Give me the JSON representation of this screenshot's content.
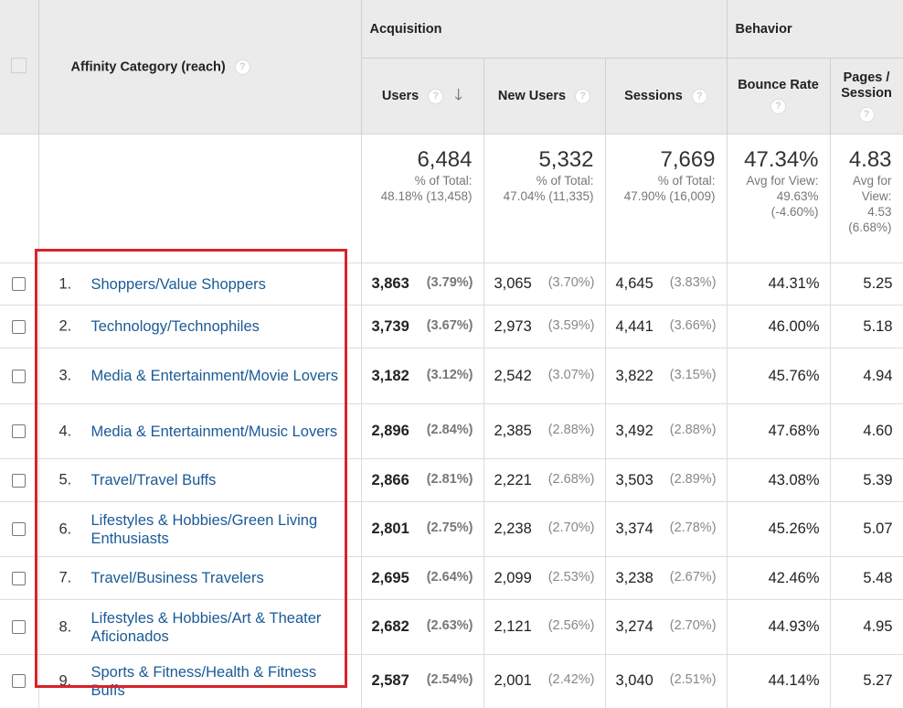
{
  "header": {
    "dimension_label": "Affinity Category (reach)",
    "groups": {
      "acquisition": "Acquisition",
      "behavior": "Behavior"
    },
    "columns": {
      "users": "Users",
      "new_users": "New Users",
      "sessions": "Sessions",
      "bounce_rate": "Bounce Rate",
      "pages_session_line1": "Pages /",
      "pages_session_line2": "Session"
    },
    "help_glyph": "?",
    "sort_glyph": "🡓",
    "sort_icon": "arrow-down-icon"
  },
  "totals": {
    "users": {
      "value": "6,484",
      "line1": "% of Total:",
      "line2": "48.18% (13,458)"
    },
    "new_users": {
      "value": "5,332",
      "line1": "% of Total:",
      "line2": "47.04% (11,335)"
    },
    "sessions": {
      "value": "7,669",
      "line1": "% of Total:",
      "line2": "47.90% (16,009)"
    },
    "bounce_rate": {
      "value": "47.34%",
      "line1": "Avg for View:",
      "line2": "49.63%",
      "line3": "(-4.60%)"
    },
    "pages_session": {
      "value": "4.83",
      "line1": "Avg for",
      "line2": "View:",
      "line3": "4.53",
      "line4": "(6.68%)"
    }
  },
  "rows": [
    {
      "rank": "1.",
      "category": "Shoppers/Value Shoppers",
      "users": "3,863",
      "users_pct": "(3.79%)",
      "new_users": "3,065",
      "new_users_pct": "(3.70%)",
      "sessions": "4,645",
      "sessions_pct": "(3.83%)",
      "bounce_rate": "44.31%",
      "pages_session": "5.25"
    },
    {
      "rank": "2.",
      "category": "Technology/Technophiles",
      "users": "3,739",
      "users_pct": "(3.67%)",
      "new_users": "2,973",
      "new_users_pct": "(3.59%)",
      "sessions": "4,441",
      "sessions_pct": "(3.66%)",
      "bounce_rate": "46.00%",
      "pages_session": "5.18"
    },
    {
      "rank": "3.",
      "category": "Media & Entertainment/Movie Lovers",
      "users": "3,182",
      "users_pct": "(3.12%)",
      "new_users": "2,542",
      "new_users_pct": "(3.07%)",
      "sessions": "3,822",
      "sessions_pct": "(3.15%)",
      "bounce_rate": "45.76%",
      "pages_session": "4.94"
    },
    {
      "rank": "4.",
      "category": "Media & Entertainment/Music Lovers",
      "users": "2,896",
      "users_pct": "(2.84%)",
      "new_users": "2,385",
      "new_users_pct": "(2.88%)",
      "sessions": "3,492",
      "sessions_pct": "(2.88%)",
      "bounce_rate": "47.68%",
      "pages_session": "4.60"
    },
    {
      "rank": "5.",
      "category": "Travel/Travel Buffs",
      "users": "2,866",
      "users_pct": "(2.81%)",
      "new_users": "2,221",
      "new_users_pct": "(2.68%)",
      "sessions": "3,503",
      "sessions_pct": "(2.89%)",
      "bounce_rate": "43.08%",
      "pages_session": "5.39"
    },
    {
      "rank": "6.",
      "category": "Lifestyles & Hobbies/Green Living Enthusiasts",
      "users": "2,801",
      "users_pct": "(2.75%)",
      "new_users": "2,238",
      "new_users_pct": "(2.70%)",
      "sessions": "3,374",
      "sessions_pct": "(2.78%)",
      "bounce_rate": "45.26%",
      "pages_session": "5.07"
    },
    {
      "rank": "7.",
      "category": "Travel/Business Travelers",
      "users": "2,695",
      "users_pct": "(2.64%)",
      "new_users": "2,099",
      "new_users_pct": "(2.53%)",
      "sessions": "3,238",
      "sessions_pct": "(2.67%)",
      "bounce_rate": "42.46%",
      "pages_session": "5.48"
    },
    {
      "rank": "8.",
      "category": "Lifestyles & Hobbies/Art & Theater Aficionados",
      "users": "2,682",
      "users_pct": "(2.63%)",
      "new_users": "2,121",
      "new_users_pct": "(2.56%)",
      "sessions": "3,274",
      "sessions_pct": "(2.70%)",
      "bounce_rate": "44.93%",
      "pages_session": "4.95"
    },
    {
      "rank": "9.",
      "category": "Sports & Fitness/Health & Fitness Buffs",
      "users": "2,587",
      "users_pct": "(2.54%)",
      "new_users": "2,001",
      "new_users_pct": "(2.42%)",
      "sessions": "3,040",
      "sessions_pct": "(2.51%)",
      "bounce_rate": "44.14%",
      "pages_session": "5.27"
    }
  ],
  "colors": {
    "link": "#1a5a96",
    "header_bg": "#ebebeb",
    "highlight": "#d8232a"
  }
}
